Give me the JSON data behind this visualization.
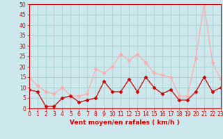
{
  "x": [
    0,
    1,
    2,
    3,
    4,
    5,
    6,
    7,
    8,
    9,
    10,
    11,
    12,
    13,
    14,
    15,
    16,
    17,
    18,
    19,
    20,
    21,
    22,
    23
  ],
  "y_mean": [
    9,
    8,
    1,
    1,
    5,
    6,
    3,
    4,
    5,
    13,
    8,
    8,
    14,
    8,
    15,
    10,
    7,
    9,
    4,
    4,
    8,
    15,
    8,
    10
  ],
  "y_gusts": [
    15,
    11,
    8,
    7,
    10,
    6,
    6,
    7,
    19,
    17,
    20,
    26,
    23,
    26,
    22,
    17,
    16,
    15,
    6,
    6,
    24,
    50,
    22,
    14
  ],
  "xlabel": "Vent moyen/en rafales ( km/h )",
  "ylim": [
    0,
    50
  ],
  "xlim": [
    0,
    23
  ],
  "yticks": [
    0,
    5,
    10,
    15,
    20,
    25,
    30,
    35,
    40,
    45,
    50
  ],
  "xticks": [
    0,
    1,
    2,
    3,
    4,
    5,
    6,
    7,
    8,
    9,
    10,
    11,
    12,
    13,
    14,
    15,
    16,
    17,
    18,
    19,
    20,
    21,
    22,
    23
  ],
  "bg_color": "#cce8ec",
  "grid_color": "#a0cccc",
  "line_color_mean": "#cc0000",
  "line_color_gusts": "#ffaaaa",
  "marker_color_mean": "#cc0000",
  "marker_color_gusts": "#ffaaaa",
  "tick_color": "#cc0000",
  "spine_color": "#cc0000",
  "xlabel_color": "#cc0000",
  "xlabel_fontsize": 6.5,
  "tick_fontsize": 5.5,
  "linewidth": 0.9,
  "markersize": 2.5
}
